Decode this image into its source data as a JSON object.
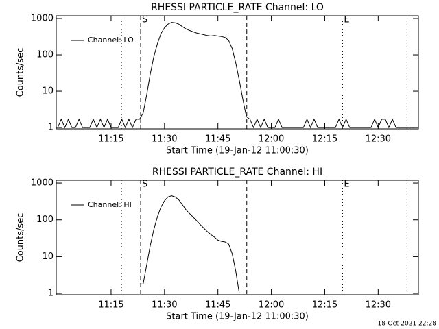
{
  "chart_data": [
    {
      "type": "line",
      "title": "RHESSI PARTICLE_RATE Channel: LO",
      "xlabel": "Start Time (19-Jan-12 11:00:30)",
      "ylabel": "Counts/sec",
      "log_y": true,
      "ylim": [
        0.92,
        1190
      ],
      "yticks": [
        1,
        10,
        100,
        1000
      ],
      "xlim": [
        -0.4,
        101.3
      ],
      "xticks": [
        {
          "value": 15,
          "label": "11:15"
        },
        {
          "value": 30,
          "label": "11:30"
        },
        {
          "value": 45,
          "label": "11:45"
        },
        {
          "value": 60,
          "label": "12:00"
        },
        {
          "value": 75,
          "label": "12:15"
        },
        {
          "value": 90,
          "label": "12:30"
        }
      ],
      "markers": [
        {
          "x": 17.9,
          "style": "dotted"
        },
        {
          "x": 23.3,
          "style": "dashed",
          "label": "S"
        },
        {
          "x": 53.1,
          "style": "dashed"
        },
        {
          "x": 80,
          "style": "dotted",
          "label": "E"
        },
        {
          "x": 98.1,
          "style": "dotted"
        }
      ],
      "x": [
        0,
        1,
        2,
        3,
        4,
        5,
        6,
        7,
        8,
        9,
        10,
        11,
        12,
        13,
        14,
        15,
        16,
        17,
        18,
        19,
        20,
        21,
        22,
        23,
        24,
        25,
        26,
        27,
        28,
        29,
        30,
        31,
        32,
        33,
        34,
        35,
        36,
        37,
        38,
        39,
        40,
        41,
        42,
        43,
        44,
        45,
        46,
        47,
        48,
        49,
        50,
        51,
        52,
        53,
        54,
        55,
        56,
        57,
        58,
        59,
        60,
        61,
        62,
        63,
        64,
        65,
        66,
        67,
        68,
        69,
        70,
        71,
        72,
        73,
        74,
        75,
        76,
        77,
        78,
        79,
        80,
        81,
        82,
        83,
        84,
        85,
        86,
        87,
        88,
        89,
        90,
        91,
        92,
        93,
        94,
        95,
        96,
        97,
        98,
        99,
        100
      ],
      "series": [
        {
          "name": "Channel: LO",
          "color": "#000000",
          "values": [
            1,
            1.7,
            1,
            1.7,
            1,
            1,
            1.7,
            1,
            1,
            1,
            1.7,
            1,
            1.7,
            1,
            1.7,
            1,
            1,
            1,
            1.7,
            1,
            1.7,
            1,
            1.7,
            1.7,
            2.5,
            8,
            30,
            90,
            200,
            380,
            560,
            700,
            780,
            760,
            700,
            600,
            520,
            470,
            430,
            400,
            380,
            360,
            340,
            330,
            340,
            330,
            320,
            300,
            250,
            150,
            60,
            20,
            6,
            2,
            1.7,
            1,
            1.7,
            1,
            1.7,
            1,
            1,
            1,
            1.7,
            1,
            1,
            1,
            1,
            1,
            1,
            1,
            1.7,
            1,
            1.7,
            1,
            1,
            1,
            1,
            1,
            1,
            1.7,
            1,
            1.7,
            1,
            1,
            1,
            1,
            1,
            1,
            1,
            1.7,
            1,
            1.7,
            1.7,
            1,
            1.7,
            1,
            1,
            1,
            1,
            1,
            1
          ]
        }
      ]
    },
    {
      "type": "line",
      "title": "RHESSI PARTICLE_RATE Channel: HI",
      "xlabel": "Start Time (19-Jan-12 11:00:30)",
      "ylabel": "Counts/sec",
      "log_y": true,
      "ylim": [
        0.92,
        1190
      ],
      "yticks": [
        1,
        10,
        100,
        1000
      ],
      "xlim": [
        -0.4,
        101.3
      ],
      "xticks": [
        {
          "value": 15,
          "label": "11:15"
        },
        {
          "value": 30,
          "label": "11:30"
        },
        {
          "value": 45,
          "label": "11:45"
        },
        {
          "value": 60,
          "label": "12:00"
        },
        {
          "value": 75,
          "label": "12:15"
        },
        {
          "value": 90,
          "label": "12:30"
        }
      ],
      "markers": [
        {
          "x": 17.9,
          "style": "dotted"
        },
        {
          "x": 23.3,
          "style": "dashed",
          "label": "S"
        },
        {
          "x": 53.1,
          "style": "dashed"
        },
        {
          "x": 80,
          "style": "dotted",
          "label": "E"
        },
        {
          "x": 98.1,
          "style": "dotted"
        }
      ],
      "x": [
        0,
        1,
        2,
        3,
        4,
        5,
        6,
        7,
        8,
        9,
        10,
        11,
        12,
        13,
        14,
        15,
        16,
        17,
        18,
        19,
        20,
        21,
        22,
        23,
        24,
        25,
        26,
        27,
        28,
        29,
        30,
        31,
        32,
        33,
        34,
        35,
        36,
        37,
        38,
        39,
        40,
        41,
        42,
        43,
        44,
        45,
        46,
        47,
        48,
        49,
        50,
        51,
        52,
        53,
        54,
        55,
        56,
        57,
        58,
        59,
        60,
        61,
        62,
        63,
        64,
        65,
        66,
        67,
        68,
        69,
        70,
        71,
        72,
        73,
        74,
        75,
        76,
        77,
        78,
        79,
        80,
        81,
        82,
        83,
        84,
        85,
        86,
        87,
        88,
        89,
        90,
        91,
        92,
        93,
        94,
        95,
        96,
        97,
        98,
        99,
        100
      ],
      "series": [
        {
          "name": "Channel: HI",
          "color": "#000000",
          "values": [
            null,
            null,
            null,
            null,
            null,
            null,
            null,
            null,
            null,
            null,
            null,
            null,
            null,
            null,
            null,
            null,
            null,
            null,
            null,
            null,
            null,
            null,
            null,
            1.8,
            1.8,
            6,
            20,
            55,
            120,
            220,
            330,
            420,
            450,
            420,
            350,
            260,
            190,
            150,
            120,
            95,
            75,
            60,
            48,
            40,
            34,
            28,
            26,
            25,
            22,
            12,
            4,
            1,
            null,
            null,
            null,
            null,
            null,
            null,
            null,
            null,
            null,
            null,
            null,
            null,
            null,
            null,
            null,
            null,
            null,
            null,
            null,
            null,
            null,
            null,
            null,
            null,
            null,
            null,
            null,
            null,
            null,
            null,
            null,
            null,
            null,
            null,
            null,
            null,
            null,
            null,
            null,
            null,
            null,
            null,
            null,
            null,
            null,
            null,
            null,
            null,
            null
          ]
        }
      ]
    }
  ],
  "footer": "18-Oct-2021 22:28"
}
